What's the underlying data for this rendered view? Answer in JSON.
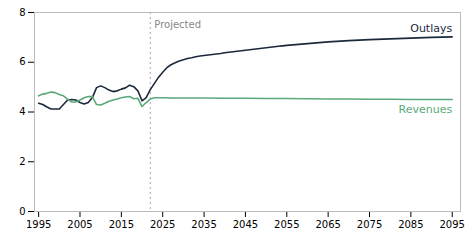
{
  "chart_data": {
    "type": "line",
    "xlim": [
      1994,
      2097
    ],
    "ylim": [
      0,
      8
    ],
    "xticks": [
      1995,
      2005,
      2015,
      2025,
      2035,
      2045,
      2055,
      2065,
      2075,
      2085,
      2095
    ],
    "yticks": [
      0,
      2,
      4,
      6,
      8
    ],
    "grid": false,
    "series": [
      {
        "name": "Outlays",
        "color": "#1b2a3b",
        "x": [
          1995,
          1996,
          1997,
          1998,
          1999,
          2000,
          2001,
          2002,
          2003,
          2004,
          2005,
          2006,
          2007,
          2008,
          2009,
          2010,
          2011,
          2012,
          2013,
          2014,
          2015,
          2016,
          2017,
          2018,
          2019,
          2020,
          2021,
          2022,
          2022,
          2023,
          2024,
          2025,
          2026,
          2027,
          2028,
          2029,
          2030,
          2031,
          2032,
          2033,
          2034,
          2035,
          2036,
          2037,
          2038,
          2039,
          2040,
          2041,
          2042,
          2043,
          2044,
          2045,
          2046,
          2047,
          2048,
          2049,
          2050,
          2051,
          2052,
          2053,
          2054,
          2055,
          2060,
          2065,
          2070,
          2075,
          2080,
          2085,
          2090,
          2095
        ],
        "values": [
          4.35,
          4.3,
          4.2,
          4.12,
          4.12,
          4.12,
          4.3,
          4.48,
          4.5,
          4.48,
          4.38,
          4.32,
          4.38,
          4.58,
          4.98,
          5.05,
          4.98,
          4.88,
          4.82,
          4.85,
          4.92,
          4.97,
          5.08,
          5.02,
          4.85,
          4.45,
          4.58,
          4.9,
          4.9,
          5.15,
          5.4,
          5.6,
          5.78,
          5.9,
          5.98,
          6.05,
          6.1,
          6.15,
          6.18,
          6.22,
          6.25,
          6.27,
          6.29,
          6.31,
          6.33,
          6.35,
          6.38,
          6.4,
          6.42,
          6.44,
          6.46,
          6.48,
          6.5,
          6.52,
          6.54,
          6.56,
          6.58,
          6.6,
          6.62,
          6.64,
          6.66,
          6.68,
          6.75,
          6.82,
          6.87,
          6.91,
          6.94,
          6.97,
          7.0,
          7.02
        ]
      },
      {
        "name": "Revenues",
        "color": "#5da87a",
        "x": [
          1995,
          1996,
          1997,
          1998,
          1999,
          2000,
          2001,
          2002,
          2003,
          2004,
          2005,
          2006,
          2007,
          2008,
          2009,
          2010,
          2011,
          2012,
          2013,
          2014,
          2015,
          2016,
          2017,
          2018,
          2019,
          2020,
          2021,
          2022,
          2022,
          2023,
          2024,
          2025,
          2026,
          2027,
          2028,
          2029,
          2030,
          2031,
          2032,
          2033,
          2034,
          2035,
          2040,
          2045,
          2050,
          2055,
          2060,
          2065,
          2070,
          2075,
          2080,
          2085,
          2090,
          2095
        ],
        "values": [
          4.65,
          4.72,
          4.75,
          4.8,
          4.78,
          4.7,
          4.65,
          4.52,
          4.4,
          4.4,
          4.48,
          4.57,
          4.62,
          4.62,
          4.3,
          4.28,
          4.35,
          4.43,
          4.48,
          4.52,
          4.57,
          4.6,
          4.62,
          4.53,
          4.55,
          4.22,
          4.38,
          4.52,
          4.52,
          4.57,
          4.57,
          4.57,
          4.57,
          4.56,
          4.56,
          4.56,
          4.56,
          4.56,
          4.56,
          4.56,
          4.56,
          4.56,
          4.55,
          4.55,
          4.54,
          4.54,
          4.53,
          4.52,
          4.52,
          4.51,
          4.51,
          4.5,
          4.5,
          4.5
        ]
      }
    ],
    "annotations": [
      {
        "text": "Projected",
        "x": 2022
      }
    ]
  }
}
